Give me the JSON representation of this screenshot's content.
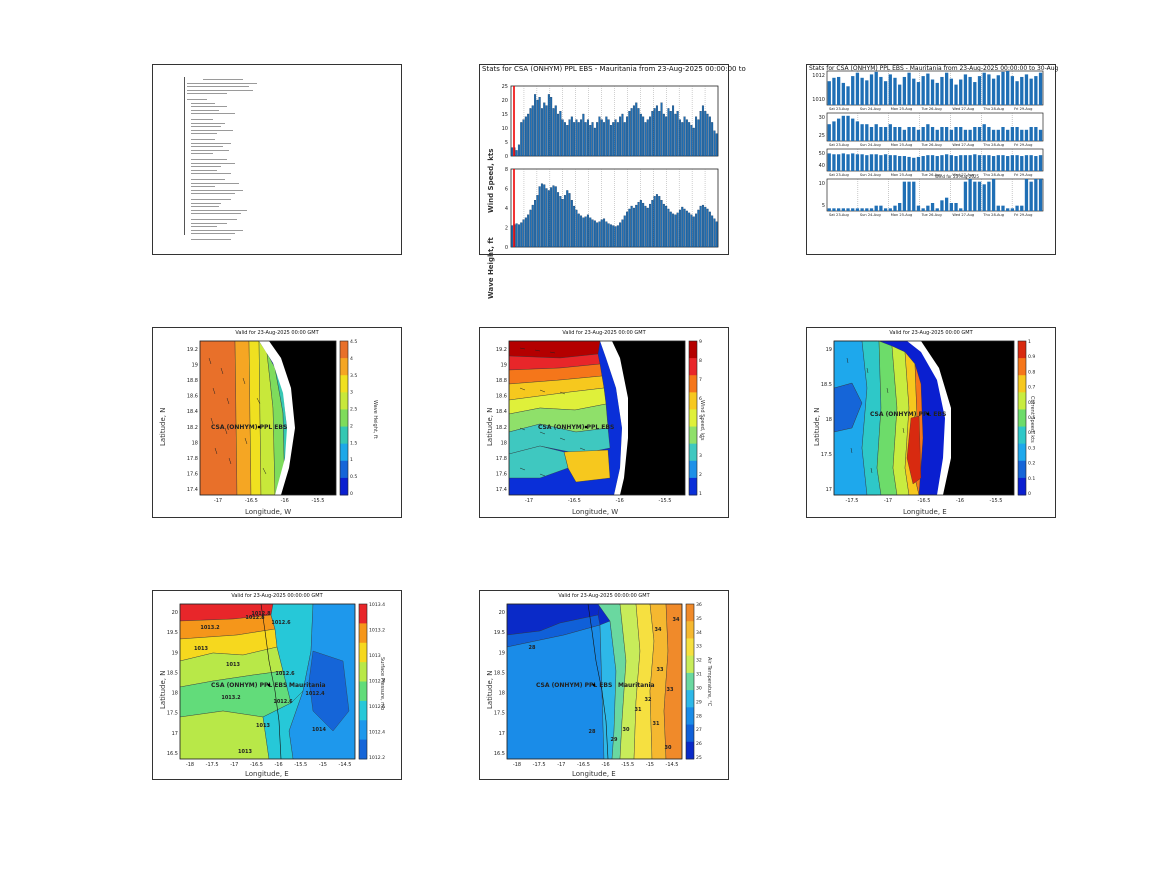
{
  "doc_panel": {
    "lines": [
      [
        50,
        40
      ],
      [
        34,
        70
      ],
      [
        34,
        62
      ],
      [
        34,
        66
      ],
      [
        34,
        40
      ],
      [
        34,
        20
      ],
      [
        38,
        24
      ],
      [
        38,
        36
      ],
      [
        38,
        28
      ],
      [
        38,
        44
      ],
      [
        38,
        22
      ],
      [
        38,
        34
      ],
      [
        38,
        30
      ],
      [
        38,
        42
      ],
      [
        38,
        26
      ],
      [
        38,
        24
      ],
      [
        38,
        40
      ],
      [
        38,
        32
      ],
      [
        38,
        38
      ],
      [
        38,
        22
      ],
      [
        38,
        36
      ],
      [
        38,
        44
      ],
      [
        38,
        30
      ],
      [
        38,
        26
      ],
      [
        38,
        40
      ],
      [
        38,
        34
      ],
      [
        38,
        48
      ],
      [
        38,
        24
      ],
      [
        38,
        52
      ],
      [
        38,
        44
      ],
      [
        38,
        40
      ],
      [
        38,
        30
      ],
      [
        38,
        28
      ],
      [
        38,
        56
      ],
      [
        38,
        50
      ],
      [
        38,
        46
      ],
      [
        38,
        36
      ],
      [
        38,
        26
      ],
      [
        38,
        52
      ],
      [
        38,
        44
      ],
      [
        38,
        40
      ]
    ]
  },
  "wind_wave_panel": {
    "title": "Stats for CSA (ONHYM) PPL EBS - Mauritania from 23-Aug-2025 00:00:00 to",
    "top_ylabel": "Wind Speed, kts",
    "bottom_ylabel": "Wave Height, ft",
    "top_ticks": [
      "25",
      "20",
      "15",
      "10",
      "5",
      "0"
    ],
    "bottom_ticks": [
      "8",
      "6",
      "4",
      "2",
      "0"
    ]
  },
  "current_panel": {
    "title": "Stats for CSA (ONHYM) PPL EBS - Mauritania from 23-Aug-2025 00:00:00 to 30-Aug",
    "rows": [
      {
        "ticks": [
          "1012",
          "1010"
        ]
      },
      {
        "ticks": [
          "30",
          "25"
        ]
      },
      {
        "ticks": [
          "50",
          "40"
        ]
      },
      {
        "ticks": [
          "10",
          "5"
        ]
      }
    ],
    "date_labels": [
      "Sat 23-Aug",
      "Sun 24-Aug",
      "Mon 25-Aug",
      "Tue 26-Aug",
      "Wed 27-Aug",
      "Thu 28-Aug",
      "Fri 29-Aug"
    ],
    "inner_title": "Wind for 23-Aug-2025"
  },
  "maps": [
    {
      "title": "Valid for 23-Aug-2025 00:00 GMT",
      "xlabel": "Longitude, W",
      "ylabel": "Latitude, N",
      "cblabel": "Wave Height, ft",
      "site": "CSA (ONHYM) PPL EBS",
      "yticks": [
        "19.2",
        "19",
        "18.8",
        "18.6",
        "18.4",
        "18.2",
        "18",
        "17.8",
        "17.6",
        "17.4"
      ],
      "xticks": [
        "-17",
        "-16.5",
        "-16",
        "-15.5"
      ],
      "cbticks": [
        "4.5",
        "4",
        "3.5",
        "3",
        "2.5",
        "2",
        "1.5",
        "1",
        "0.5",
        "0"
      ],
      "palette": [
        "#e8702a",
        "#f5a623",
        "#f0e020",
        "#c8e83a",
        "#7fdc5c",
        "#36c7b3",
        "#1ea8e8",
        "#1565d8",
        "#0a1fd0"
      ]
    },
    {
      "title": "Valid for 23-Aug-2025 00:00 GMT",
      "xlabel": "Longitude, W",
      "ylabel": "Latitude, N",
      "cblabel": "Wind Speed, kts",
      "site": "CSA (ONHYM) PPL EBS",
      "yticks": [
        "19.2",
        "19",
        "18.8",
        "18.6",
        "18.4",
        "18.2",
        "18",
        "17.8",
        "17.6",
        "17.4"
      ],
      "xticks": [
        "-17",
        "-16.5",
        "-16",
        "-15.5"
      ],
      "cbticks": [
        "9",
        "8",
        "7",
        "6",
        "5",
        "4",
        "3",
        "2",
        "1"
      ],
      "palette": [
        "#b40000",
        "#e8262a",
        "#f5761a",
        "#f6c81e",
        "#dff03a",
        "#8fe06a",
        "#3fc8c0",
        "#1e90e8",
        "#0a2fd8"
      ]
    },
    {
      "title": "Valid for 23-Aug-2025 00:00 GMT",
      "xlabel": "Longitude, E",
      "ylabel": "Latitude, N",
      "cblabel": "Current Speed, kts",
      "site": "CSA (ONHYM) PPL EBS",
      "yticks": [
        "19",
        "18.5",
        "18",
        "17.5",
        "17"
      ],
      "xticks": [
        "-17.5",
        "-17",
        "-16.5",
        "-16",
        "-15.5"
      ],
      "cbticks": [
        "1",
        "0.9",
        "0.8",
        "0.7",
        "0.6",
        "0.5",
        "0.4",
        "0.3",
        "0.2",
        "0.1",
        "0"
      ],
      "palette": [
        "#d82a10",
        "#f5761a",
        "#f6c81e",
        "#c8ec40",
        "#6ddc6a",
        "#2ec8c8",
        "#1ea8ec",
        "#1565d8",
        "#0a1fd0"
      ]
    },
    {
      "title": "Valid for 23-Aug-2025 00:00:00 GMT",
      "xlabel": "Longitude, E",
      "ylabel": "Latitude, N",
      "cblabel": "Surface Pressure, mb",
      "site": "CSA (ONHYM) PPL EBS",
      "site2": "Mauritania",
      "yticks": [
        "20",
        "19.5",
        "19",
        "18.5",
        "18",
        "17.5",
        "17",
        "16.5"
      ],
      "xticks": [
        "-18",
        "-17.5",
        "-17",
        "-16.5",
        "-16",
        "-15.5",
        "-15",
        "-14.5"
      ],
      "cbticks": [
        "1013.4",
        "1013.2",
        "1013",
        "1012.8",
        "1012.6",
        "1012.4",
        "1012.2"
      ],
      "contour_labels": [
        "1013.2",
        "1012.8",
        "1013",
        "1012.6",
        "1012.8",
        "1013",
        "1012.6",
        "1013.2",
        "1012.4",
        "1012.6",
        "1013",
        "1014",
        "1013"
      ],
      "palette": [
        "#e8262a",
        "#f5961a",
        "#f6d81e",
        "#b8e848",
        "#62dc7a",
        "#26c8d8",
        "#1e98ec",
        "#1565d8"
      ]
    },
    {
      "title": "Valid for 23-Aug-2025 00:00:00 GMT",
      "xlabel": "Longitude, E",
      "ylabel": "Latitude, N",
      "cblabel": "Air Temperature, °C",
      "site": "CSA (ONHYM) PPL EBS",
      "site2": "Mauritania",
      "yticks": [
        "20",
        "19.5",
        "19",
        "18.5",
        "18",
        "17.5",
        "17",
        "16.5"
      ],
      "xticks": [
        "-18",
        "-17.5",
        "-17",
        "-16.5",
        "-16",
        "-15.5",
        "-15",
        "-14.5"
      ],
      "cbticks": [
        "36",
        "35",
        "34",
        "33",
        "32",
        "31",
        "30",
        "29",
        "28",
        "27",
        "26",
        "25"
      ],
      "contour_labels": [
        "28",
        "34",
        "33",
        "32",
        "31",
        "30",
        "29",
        "28",
        "33",
        "31",
        "30",
        "34"
      ],
      "palette": [
        "#f08a2a",
        "#f5b830",
        "#f6e040",
        "#c8ec5a",
        "#6ad8a0",
        "#2eb8e8",
        "#1a8ce8",
        "#1060d8",
        "#0a2ac8"
      ]
    }
  ],
  "chart_data": [
    {
      "type": "bar",
      "title": "Stats for CSA (ONHYM) PPL EBS - Mauritania from 23-Aug-2025 00:00:00 to",
      "ylabel": "Wind Speed, kts",
      "ylim": [
        0,
        25
      ],
      "values": [
        3,
        3,
        2,
        4,
        12,
        13,
        14,
        15,
        17,
        18,
        22,
        20,
        21,
        17,
        19,
        18,
        22,
        21,
        17,
        18,
        15,
        16,
        13,
        12,
        11,
        13,
        14,
        12,
        13,
        12,
        13,
        15,
        12,
        13,
        11,
        12,
        10,
        12,
        14,
        13,
        12,
        14,
        13,
        11,
        12,
        13,
        12,
        14,
        15,
        12,
        14,
        16,
        17,
        18,
        19,
        17,
        15,
        14,
        12,
        13,
        14,
        16,
        17,
        18,
        16,
        19,
        15,
        14,
        17,
        16,
        18,
        15,
        16,
        13,
        12,
        14,
        13,
        12,
        11,
        10,
        14,
        13,
        16,
        18,
        16,
        15,
        14,
        12,
        9,
        8
      ]
    },
    {
      "type": "bar",
      "ylabel": "Wave Height, ft",
      "ylim": [
        0,
        8
      ],
      "values": [
        2.2,
        2.3,
        2.4,
        2.3,
        2.5,
        2.8,
        3,
        3.3,
        3.8,
        4.3,
        4.8,
        5.3,
        6.2,
        6.5,
        6.4,
        6,
        5.8,
        6.1,
        6.3,
        6.2,
        5.6,
        5.2,
        4.9,
        5.3,
        5.8,
        5.5,
        4.8,
        4.2,
        3.8,
        3.4,
        3.2,
        3,
        3.1,
        3.3,
        3,
        2.8,
        2.7,
        2.5,
        2.6,
        2.8,
        2.9,
        2.6,
        2.4,
        2.3,
        2.2,
        2.1,
        2.2,
        2.5,
        2.8,
        3.2,
        3.6,
        3.9,
        4.2,
        4,
        4.3,
        4.6,
        4.8,
        4.5,
        4.2,
        4,
        4.4,
        4.8,
        5.2,
        5.4,
        5.2,
        4.8,
        4.4,
        4.2,
        3.9,
        3.6,
        3.4,
        3.3,
        3.5,
        3.8,
        4.1,
        3.9,
        3.7,
        3.5,
        3.3,
        3.1,
        3.4,
        3.8,
        4.2,
        4.3,
        4.1,
        3.9,
        3.6,
        3.2,
        2.9,
        2.6
      ]
    },
    {
      "type": "bar",
      "ylim": [
        1008,
        1012
      ],
      "values": [
        1010.8,
        1011.2,
        1011.3,
        1010.6,
        1010.2,
        1011.4,
        1011.8,
        1011.2,
        1010.9,
        1011.6,
        1011.9,
        1011.3,
        1010.8,
        1011.6,
        1011.2,
        1010.4,
        1011.3,
        1011.8,
        1011.1,
        1010.7,
        1011.4,
        1011.7,
        1011,
        1010.6,
        1011.3,
        1011.8,
        1011.1,
        1010.4,
        1011,
        1011.6,
        1011.3,
        1010.7,
        1011.4,
        1011.8,
        1011.6,
        1011.1,
        1011.5,
        1011.9,
        1012,
        1011.4,
        1010.8,
        1011.3,
        1011.6,
        1011.1,
        1011.4,
        1011.8
      ]
    },
    {
      "type": "bar",
      "ylim": [
        20,
        30
      ],
      "values": [
        26,
        27,
        28,
        29,
        29,
        28,
        27,
        26,
        26,
        25,
        26,
        25,
        25,
        26,
        25,
        25,
        24,
        25,
        25,
        24,
        25,
        26,
        25,
        24,
        25,
        25,
        24,
        25,
        25,
        24,
        24,
        25,
        25,
        26,
        25,
        24,
        24,
        25,
        24,
        25,
        25,
        24,
        24,
        25,
        25,
        24
      ]
    },
    {
      "type": "bar",
      "ylim": [
        30,
        55
      ],
      "values": [
        50,
        49,
        49,
        50,
        49,
        50,
        49,
        49,
        48,
        49,
        49,
        48,
        49,
        48,
        48,
        47,
        47,
        46,
        45,
        46,
        47,
        48,
        48,
        47,
        48,
        49,
        48,
        47,
        48,
        48,
        48,
        49,
        48,
        48,
        48,
        47,
        48,
        48,
        47,
        48,
        48,
        47,
        48,
        48,
        47,
        48
      ]
    },
    {
      "type": "bar",
      "ylim": [
        0,
        12
      ],
      "values": [
        1,
        1,
        1,
        1,
        1,
        1,
        1,
        1,
        1,
        1,
        2,
        2,
        1,
        1,
        2,
        3,
        11,
        11,
        11,
        2,
        1,
        2,
        3,
        1,
        4,
        5,
        3,
        3,
        1,
        11,
        12,
        11,
        11,
        10,
        11,
        12,
        2,
        2,
        1,
        1,
        2,
        2,
        12,
        11,
        12,
        12
      ]
    }
  ]
}
